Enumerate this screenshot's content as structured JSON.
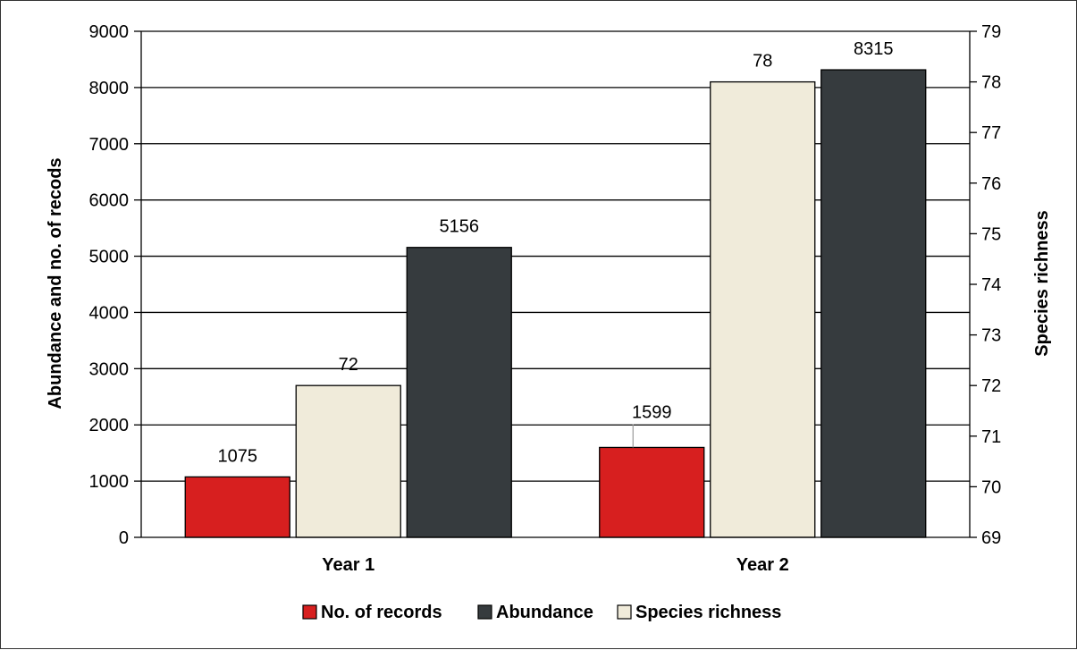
{
  "chart_data": {
    "type": "bar",
    "categories": [
      "Year 1",
      "Year 2"
    ],
    "series": [
      {
        "name": "No. of records",
        "values": [
          1075,
          1599
        ],
        "axis": "left",
        "color": "#d71f1f"
      },
      {
        "name": "Species richness",
        "values": [
          72,
          78
        ],
        "axis": "right",
        "color": "#f0ebda"
      },
      {
        "name": "Abundance",
        "values": [
          5156,
          8315
        ],
        "axis": "left",
        "color": "#363b3e"
      }
    ],
    "legend_order": [
      "No. of records",
      "Abundance",
      "Species richness"
    ],
    "legend_placement": "bottom",
    "ylabel": "Abundance and no. of recods",
    "ylabel_right": "Species richness",
    "ylim": [
      0,
      9000
    ],
    "yticks": [
      0,
      1000,
      2000,
      3000,
      4000,
      5000,
      6000,
      7000,
      8000,
      9000
    ],
    "ylim_right": [
      69,
      79
    ],
    "yticks_right": [
      69,
      70,
      71,
      72,
      73,
      74,
      75,
      76,
      77,
      78,
      79
    ],
    "grid": true
  }
}
